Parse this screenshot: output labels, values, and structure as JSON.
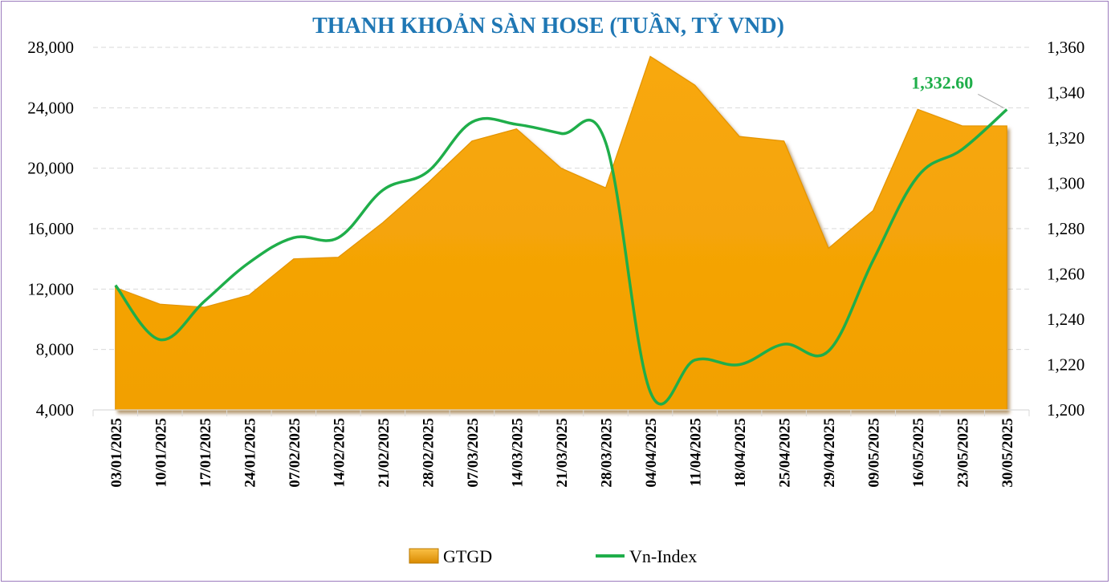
{
  "chart_data": {
    "type": "area",
    "title": "THANH KHOẢN SÀN HOSE (TUẦN, TỶ VND)",
    "categories": [
      "03/01/2025",
      "10/01/2025",
      "17/01/2025",
      "24/01/2025",
      "07/02/2025",
      "14/02/2025",
      "21/02/2025",
      "28/02/2025",
      "07/03/2025",
      "14/03/2025",
      "21/03/2025",
      "28/03/2025",
      "04/04/2025",
      "11/04/2025",
      "18/04/2025",
      "25/04/2025",
      "29/04/2025",
      "09/05/2025",
      "16/05/2025",
      "23/05/2025",
      "30/05/2025"
    ],
    "series": [
      {
        "name": "GTGD",
        "axis": "left",
        "type": "area",
        "color": "#f5a40c",
        "values": [
          12100,
          11000,
          10800,
          11600,
          14000,
          14100,
          16400,
          19000,
          21800,
          22600,
          20000,
          18700,
          27400,
          25500,
          22100,
          21800,
          14700,
          17200,
          23900,
          22800,
          22800
        ]
      },
      {
        "name": "Vn-Index",
        "axis": "right",
        "type": "line",
        "color": "#1fae4a",
        "values": [
          1255,
          1231,
          1248,
          1265,
          1276,
          1276,
          1297,
          1305,
          1327,
          1326,
          1322,
          1318,
          1208,
          1222,
          1220,
          1229,
          1226,
          1266,
          1303,
          1315,
          1332.6
        ]
      }
    ],
    "ylim_left": [
      4000,
      28000
    ],
    "yticks_left": [
      "4,000",
      "8,000",
      "12,000",
      "16,000",
      "20,000",
      "24,000",
      "28,000"
    ],
    "ylim_right": [
      1200,
      1360
    ],
    "yticks_right": [
      "1,200",
      "1,220",
      "1,240",
      "1,260",
      "1,280",
      "1,300",
      "1,320",
      "1,340",
      "1,360"
    ],
    "annotation": {
      "text": "1,332.60",
      "series": "Vn-Index",
      "index": 20
    },
    "grid": "horizontal dashed",
    "legend": "bottom"
  }
}
